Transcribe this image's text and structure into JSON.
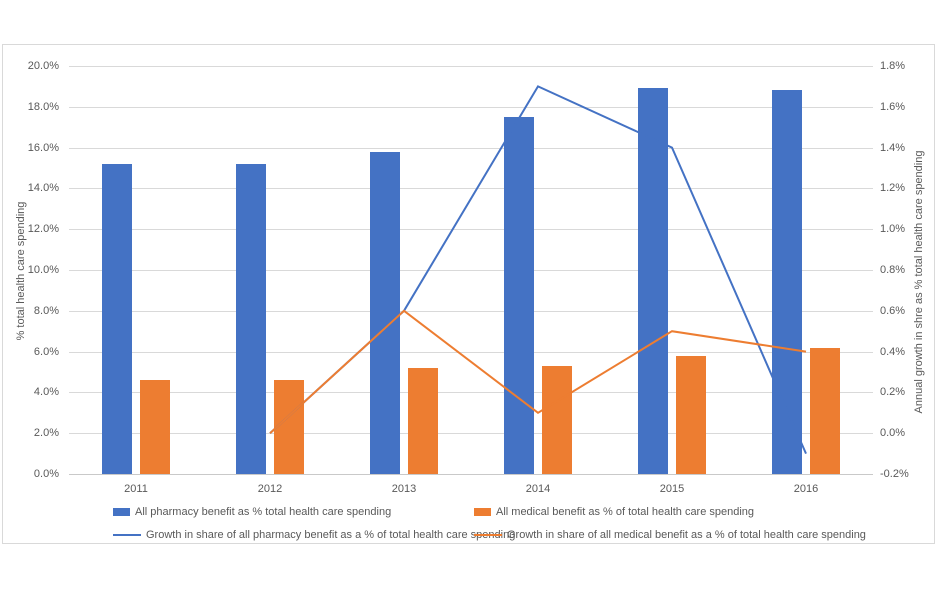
{
  "colors": {
    "bar_blue": "#4472C4",
    "bar_orange": "#ED7D31",
    "line_blue": "#4472C4",
    "line_orange": "#ED7D31",
    "gridline": "#d9d9d9",
    "text": "#595959"
  },
  "chart_data": {
    "type": "bar",
    "subtype": "combo-bar-line-dual-axis",
    "categories": [
      "2011",
      "2012",
      "2013",
      "2014",
      "2015",
      "2016"
    ],
    "series": [
      {
        "name": "All pharmacy benefit as % total health care spending",
        "render": "bar",
        "axis": "left",
        "color": "#4472C4",
        "values": [
          15.2,
          15.2,
          15.8,
          17.5,
          18.9,
          18.8
        ]
      },
      {
        "name": "All medical benefit as % of total health care spending",
        "render": "bar",
        "axis": "left",
        "color": "#ED7D31",
        "values": [
          4.6,
          4.6,
          5.2,
          5.3,
          5.8,
          6.2
        ]
      },
      {
        "name": "Growth in share of all pharmacy benefit as a % of total health care spending",
        "render": "line",
        "axis": "right",
        "color": "#4472C4",
        "values": [
          null,
          0.0,
          0.6,
          1.7,
          1.4,
          -0.1
        ]
      },
      {
        "name": "Growth in share of all medical benefit as a % of total health care spending",
        "render": "line",
        "axis": "right",
        "color": "#ED7D31",
        "values": [
          null,
          0.0,
          0.6,
          0.1,
          0.5,
          0.4
        ]
      }
    ],
    "left_axis": {
      "label": "% total health care spending",
      "min": 0.0,
      "max": 20.0,
      "step": 2.0,
      "tick_labels": [
        "20.0%",
        "18.0%",
        "16.0%",
        "14.0%",
        "12.0%",
        "10.0%",
        "8.0%",
        "6.0%",
        "4.0%",
        "2.0%",
        "0.0%"
      ]
    },
    "right_axis": {
      "label": "Annual growth in shre as % total health care spending",
      "min": -0.2,
      "max": 1.8,
      "step": 0.2,
      "tick_labels": [
        "1.8%",
        "1.6%",
        "1.4%",
        "1.2%",
        "1.0%",
        "0.8%",
        "0.6%",
        "0.4%",
        "0.2%",
        "0.0%",
        "-0.2%"
      ]
    },
    "grid": true,
    "legend_position": "bottom",
    "title": ""
  }
}
